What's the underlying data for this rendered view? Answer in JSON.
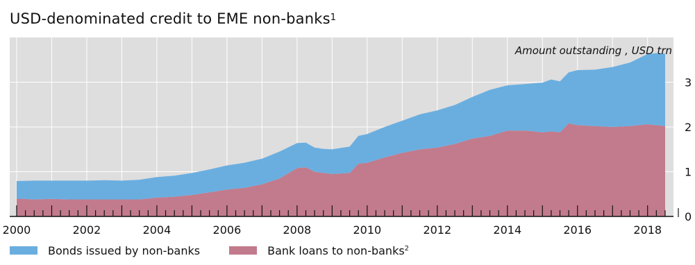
{
  "title": {
    "text": "USD-denominated credit to EME non-banks",
    "footnote": "1"
  },
  "legend": {
    "items": [
      {
        "label": "Bonds issued by non-banks",
        "footnote": "",
        "color": "#6aaee0"
      },
      {
        "label": "Bank loans to non-banks",
        "footnote": "2",
        "color": "#c27b8c"
      }
    ]
  },
  "chart_data": {
    "type": "area",
    "stacked": true,
    "title": "USD-denominated credit to EME non-banks",
    "title_footnote": "1",
    "annotation": "Amount outstanding , USD trn",
    "xlabel": "",
    "ylabel": "",
    "xlim": [
      2000.0,
      2018.6
    ],
    "ylim": [
      0,
      4.0
    ],
    "yticks": [
      0,
      1,
      2,
      3
    ],
    "xticks": [
      "2000",
      "2002",
      "2004",
      "2006",
      "2008",
      "2010",
      "2012",
      "2014",
      "2016",
      "2018"
    ],
    "x": [
      2000.0,
      2000.5,
      2001.0,
      2001.5,
      2002.0,
      2002.5,
      2003.0,
      2003.5,
      2004.0,
      2004.5,
      2005.0,
      2005.5,
      2006.0,
      2006.5,
      2007.0,
      2007.5,
      2008.0,
      2008.25,
      2008.5,
      2008.75,
      2009.0,
      2009.25,
      2009.5,
      2009.75,
      2010.0,
      2010.5,
      2011.0,
      2011.5,
      2012.0,
      2012.5,
      2013.0,
      2013.5,
      2014.0,
      2014.5,
      2015.0,
      2015.25,
      2015.5,
      2015.75,
      2016.0,
      2016.5,
      2017.0,
      2017.5,
      2018.0,
      2018.25,
      2018.5
    ],
    "series": [
      {
        "name": "Bank loans to non-banks",
        "footnote": "2",
        "color": "#c27b8c",
        "values": [
          0.4,
          0.38,
          0.39,
          0.38,
          0.38,
          0.38,
          0.38,
          0.38,
          0.42,
          0.44,
          0.48,
          0.54,
          0.6,
          0.64,
          0.72,
          0.85,
          1.08,
          1.1,
          1.0,
          0.97,
          0.95,
          0.96,
          0.97,
          1.18,
          1.2,
          1.32,
          1.42,
          1.5,
          1.54,
          1.62,
          1.74,
          1.8,
          1.92,
          1.92,
          1.88,
          1.9,
          1.88,
          2.08,
          2.04,
          2.02,
          2.0,
          2.02,
          2.06,
          2.04,
          2.02
        ]
      },
      {
        "name": "Bonds issued by non-banks",
        "footnote": "",
        "color": "#6aaee0",
        "values": [
          0.39,
          0.42,
          0.41,
          0.42,
          0.42,
          0.43,
          0.42,
          0.44,
          0.46,
          0.47,
          0.49,
          0.51,
          0.54,
          0.56,
          0.57,
          0.6,
          0.56,
          0.55,
          0.54,
          0.54,
          0.55,
          0.57,
          0.59,
          0.62,
          0.64,
          0.68,
          0.72,
          0.78,
          0.83,
          0.87,
          0.93,
          1.03,
          1.01,
          1.04,
          1.11,
          1.16,
          1.14,
          1.14,
          1.23,
          1.26,
          1.34,
          1.42,
          1.57,
          1.61,
          1.62
        ]
      }
    ],
    "grid": true,
    "legend_position": "bottom-left"
  }
}
